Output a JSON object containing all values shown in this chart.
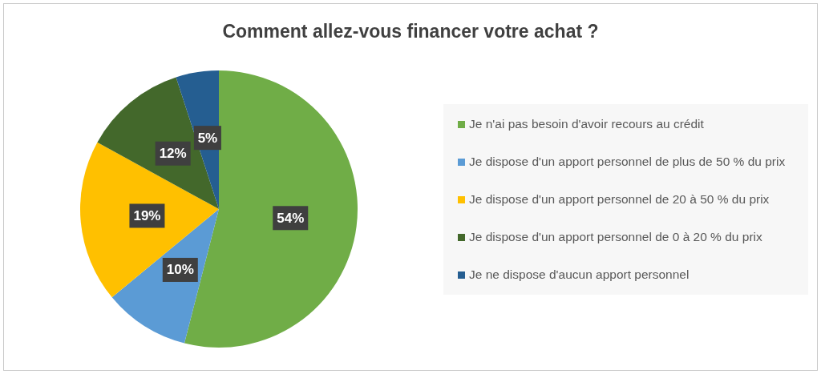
{
  "chart_data": {
    "type": "pie",
    "title": "Comment allez-vous financer votre achat ?",
    "categories": [
      "Je n'ai pas besoin d'avoir recours au crédit",
      "Je dispose d'un apport personnel de plus de 50 % du prix",
      "Je dispose d'un apport personnel de 20 à 50 % du prix",
      "Je dispose d'un apport personnel de 0 à 20 % du prix",
      "Je ne dispose d'aucun apport personnel"
    ],
    "values": [
      54,
      10,
      19,
      12,
      5
    ],
    "colors": [
      "#70ad47",
      "#5b9bd5",
      "#ffc000",
      "#43682b",
      "#255e91"
    ],
    "value_labels": [
      "54%",
      "10%",
      "19%",
      "12%",
      "5%"
    ],
    "legend": "right"
  }
}
